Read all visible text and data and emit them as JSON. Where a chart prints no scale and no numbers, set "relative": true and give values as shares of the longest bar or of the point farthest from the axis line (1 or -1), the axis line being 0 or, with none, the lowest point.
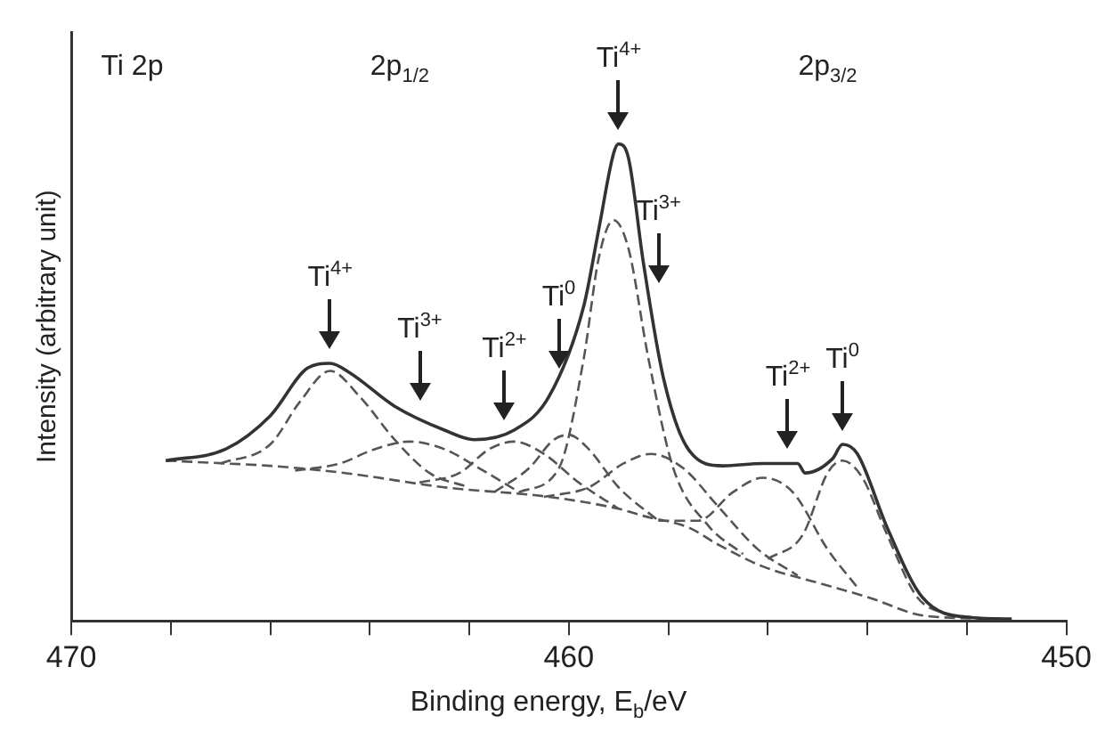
{
  "chart_data": {
    "type": "line",
    "relative": true,
    "xlabel": "Binding energy, E$_{b}$/eV",
    "ylabel": "Intensity (arbitrary unit)",
    "xlim": [
      470,
      450
    ],
    "xticks": [
      470,
      {
        "value": 468,
        "label": null
      },
      {
        "value": 466,
        "label": null
      },
      {
        "value": 464,
        "label": null
      },
      {
        "value": 462,
        "label": null
      },
      460,
      {
        "value": 458,
        "label": null
      },
      {
        "value": 456,
        "label": null
      },
      {
        "value": 454,
        "label": null
      },
      {
        "value": 452,
        "label": null
      },
      450
    ],
    "tick_labels": "x",
    "grid": false,
    "legend": false,
    "marker": "none",
    "series": [
      {
        "color": "#333333",
        "line_style": "solid",
        "x": [
          468.1,
          466.9,
          466.0,
          465.25,
          464.8,
          464.4,
          463.5,
          462.5,
          461.9,
          461.1,
          460.4,
          459.7,
          459.4,
          459.1,
          459.0,
          458.8,
          458.5,
          458.1,
          457.6,
          456.9,
          456.1,
          455.4,
          455.25,
          454.7,
          454.5,
          454.2,
          453.6,
          452.9,
          451.9,
          451.1
        ],
        "values": [
          0.336,
          0.36,
          0.43,
          0.53,
          0.54,
          0.52,
          0.45,
          0.4,
          0.38,
          0.4,
          0.47,
          0.66,
          0.82,
          0.98,
          1.0,
          0.97,
          0.75,
          0.51,
          0.36,
          0.325,
          0.33,
          0.33,
          0.31,
          0.34,
          0.37,
          0.35,
          0.195,
          0.05,
          0.007,
          0.004
        ]
      },
      {
        "color": "#555555",
        "line_style": "dashed",
        "x": [
          468.1,
          466.9,
          466.0,
          464.5,
          462.5,
          460.4,
          459.0,
          458.5,
          457.6,
          457.0,
          456.1,
          455.0,
          454.0,
          452.8,
          451.1
        ],
        "values": [
          0.336,
          0.33,
          0.325,
          0.31,
          0.28,
          0.26,
          0.235,
          0.22,
          0.196,
          0.16,
          0.114,
          0.08,
          0.05,
          0.01,
          0.004
        ]
      },
      {
        "color": "#555555",
        "line_style": "dashed",
        "x": [
          467.0,
          466.0,
          465.4,
          464.8,
          464.2,
          463.5,
          462.8,
          462.0
        ],
        "values": [
          0.33,
          0.37,
          0.46,
          0.524,
          0.47,
          0.38,
          0.31,
          0.28
        ]
      },
      {
        "color": "#555555",
        "line_style": "dashed",
        "x": [
          465.5,
          464.6,
          463.9,
          463.2,
          462.5,
          461.8,
          461.0
        ],
        "values": [
          0.315,
          0.33,
          0.36,
          0.376,
          0.36,
          0.32,
          0.27
        ]
      },
      {
        "color": "#555555",
        "line_style": "dashed",
        "x": [
          463.0,
          462.2,
          461.6,
          461.1,
          460.5,
          459.8,
          459.0
        ],
        "values": [
          0.29,
          0.31,
          0.36,
          0.376,
          0.35,
          0.29,
          0.235
        ]
      },
      {
        "color": "#555555",
        "line_style": "dashed",
        "x": [
          461.5,
          460.8,
          460.3,
          460.0,
          459.6,
          459.0,
          458.2
        ],
        "values": [
          0.27,
          0.32,
          0.38,
          0.39,
          0.36,
          0.28,
          0.21
        ]
      },
      {
        "color": "#555555",
        "line_style": "dashed",
        "x": [
          461.0,
          460.2,
          459.7,
          459.4,
          459.1,
          458.8,
          458.4,
          457.9,
          457.2,
          456.5
        ],
        "values": [
          0.27,
          0.32,
          0.55,
          0.76,
          0.84,
          0.78,
          0.55,
          0.32,
          0.2,
          0.14
        ]
      },
      {
        "color": "#555555",
        "line_style": "dashed",
        "x": [
          460.5,
          459.6,
          458.9,
          458.35,
          457.7,
          457.0,
          456.2,
          455.4
        ],
        "values": [
          0.26,
          0.28,
          0.33,
          0.35,
          0.32,
          0.24,
          0.15,
          0.095
        ]
      },
      {
        "color": "#555555",
        "line_style": "dashed",
        "x": [
          458.2,
          457.4,
          456.7,
          456.1,
          455.5,
          454.8,
          454.2
        ],
        "values": [
          0.21,
          0.21,
          0.27,
          0.3,
          0.27,
          0.15,
          0.07
        ]
      },
      {
        "color": "#555555",
        "line_style": "dashed",
        "x": [
          456.0,
          455.3,
          454.8,
          454.5,
          454.1,
          453.6,
          453.0,
          452.3
        ],
        "values": [
          0.13,
          0.18,
          0.31,
          0.336,
          0.3,
          0.18,
          0.05,
          0.01
        ]
      }
    ],
    "annotations": [
      "Ti 2p",
      "2p$_{1/2}$",
      "2p$_{3/2}$",
      {
        "text": "Ti$^{4+}$",
        "x": 464.8,
        "y": 0.54
      },
      {
        "text": "Ti$^{3+}$",
        "x": 463.0,
        "y": 0.43
      },
      {
        "text": "Ti$^{2+}$",
        "x": 461.3,
        "y": 0.39
      },
      {
        "text": "Ti$^{0}$",
        "x": 460.2,
        "y": 0.5
      },
      {
        "text": "Ti$^{4+}$",
        "x": 459.0,
        "y": 1.0
      },
      {
        "text": "Ti$^{3+}$",
        "x": 458.2,
        "y": 0.68
      },
      {
        "text": "Ti$^{2+}$",
        "x": 455.6,
        "y": 0.33
      },
      {
        "text": "Ti$^{0}$",
        "x": 454.5,
        "y": 0.37
      }
    ]
  }
}
